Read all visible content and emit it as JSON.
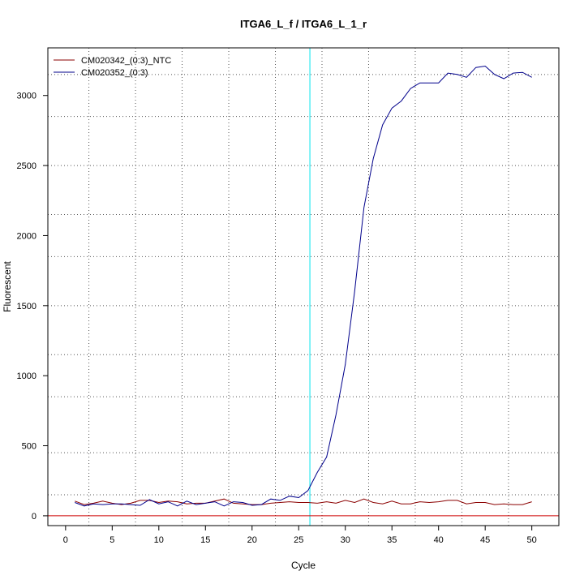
{
  "chart_data": {
    "type": "line",
    "title": "ITGA6_L_f / ITGA6_L_1_r",
    "xlabel": "Cycle",
    "ylabel": "Fluorescent",
    "xlim": [
      -1.9,
      52.9
    ],
    "ylim": [
      -70,
      3340
    ],
    "x_ticks": [
      0,
      5,
      10,
      15,
      20,
      25,
      30,
      35,
      40,
      45,
      50
    ],
    "y_ticks": [
      0,
      500,
      1000,
      1500,
      2000,
      2500,
      3000
    ],
    "grid": true,
    "grid_x": [
      2.5,
      7.5,
      12.5,
      17.5,
      22.5,
      27.5,
      32.5,
      37.5,
      42.5,
      47.5
    ],
    "grid_y": [
      150,
      450,
      850,
      1150,
      1500,
      1850,
      2150,
      2500,
      2850,
      3150
    ],
    "threshold_cycle": 26.2,
    "threshold_color": "#00e5ee",
    "baseline_value": 0,
    "baseline_color": "#cd0000",
    "legend_position": "top-left",
    "x": [
      1,
      2,
      3,
      4,
      5,
      6,
      7,
      8,
      9,
      10,
      11,
      12,
      13,
      14,
      15,
      16,
      17,
      18,
      19,
      20,
      21,
      22,
      23,
      24,
      25,
      26,
      27,
      28,
      29,
      30,
      31,
      32,
      33,
      34,
      35,
      36,
      37,
      38,
      39,
      40,
      41,
      42,
      43,
      44,
      45,
      46,
      47,
      48,
      49,
      50
    ],
    "series": [
      {
        "name": "CM020342_(0:3)_NTC",
        "color": "#8b0000",
        "values": [
          105,
          80,
          90,
          105,
          90,
          80,
          90,
          110,
          110,
          95,
          105,
          100,
          85,
          90,
          90,
          105,
          120,
          90,
          85,
          80,
          80,
          90,
          95,
          100,
          95,
          95,
          90,
          100,
          90,
          110,
          95,
          120,
          95,
          85,
          105,
          85,
          85,
          100,
          95,
          100,
          110,
          110,
          85,
          95,
          95,
          80,
          85,
          80,
          80,
          100
        ]
      },
      {
        "name": "CM020352_(0:3)",
        "color": "#00008b",
        "values": [
          95,
          70,
          85,
          80,
          85,
          85,
          80,
          75,
          115,
          85,
          100,
          70,
          105,
          80,
          90,
          100,
          70,
          100,
          95,
          75,
          80,
          120,
          110,
          140,
          130,
          180,
          310,
          420,
          720,
          1080,
          1600,
          2200,
          2550,
          2790,
          2910,
          2960,
          3050,
          3090,
          3090,
          3090,
          3160,
          3150,
          3130,
          3200,
          3210,
          3150,
          3120,
          3160,
          3165,
          3130
        ]
      }
    ]
  }
}
